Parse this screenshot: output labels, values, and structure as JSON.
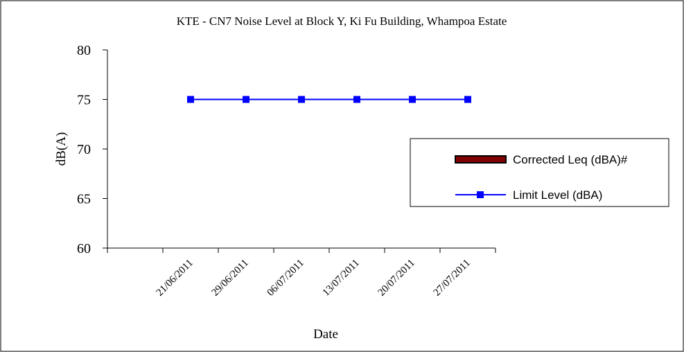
{
  "chart_data": {
    "type": "bar",
    "title": "KTE - CN7 Noise Level at Block Y, Ki Fu Building, Whampoa Estate",
    "x_label": "Date",
    "y_label": "dB(A)",
    "categories": [
      null,
      "21/06/2011",
      "29/06/2011",
      "06/07/2011",
      "13/07/2011",
      "20/07/2011",
      "27/07/2011"
    ],
    "series": [
      {
        "name": "Corrected Leq (dBA)#",
        "type": "bar",
        "color": "#800000",
        "values": [
          null,
          null,
          null,
          null,
          null,
          null,
          null
        ]
      },
      {
        "name": "Limit Level (dBA)",
        "type": "line",
        "color": "#0000ff",
        "values": [
          null,
          75,
          75,
          75,
          75,
          75,
          75
        ]
      }
    ],
    "ylim": [
      60,
      80
    ],
    "yticks": [
      60,
      65,
      70,
      75,
      80
    ],
    "grid": false,
    "legend": "right"
  }
}
